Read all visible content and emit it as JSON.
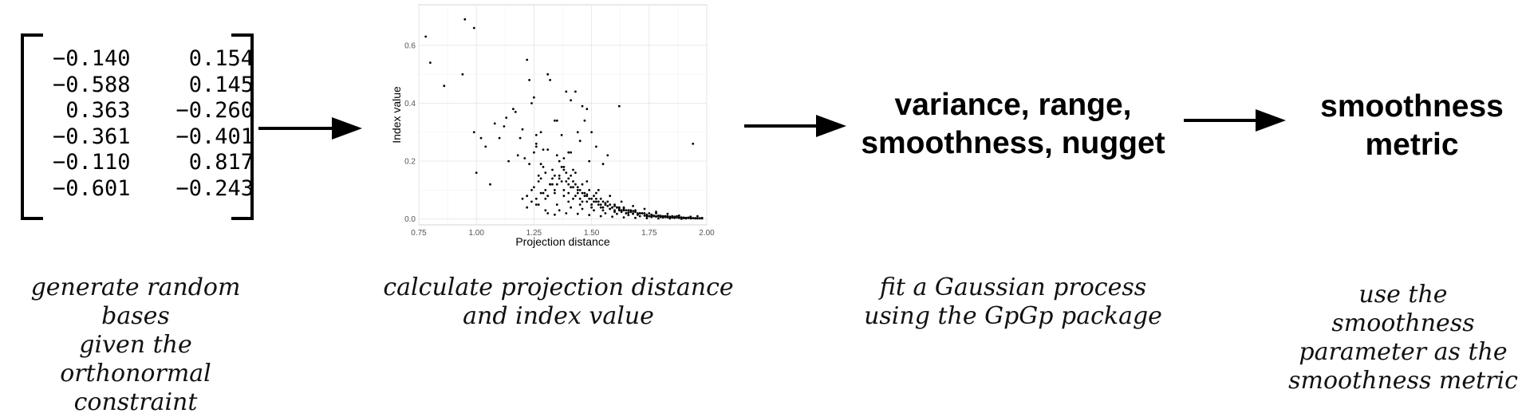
{
  "matrix": {
    "rows": [
      [
        "−0.140",
        "0.154"
      ],
      [
        "−0.588",
        "0.145"
      ],
      [
        "0.363",
        "−0.260"
      ],
      [
        "−0.361",
        "−0.401"
      ],
      [
        "−0.110",
        "0.817"
      ],
      [
        "−0.601",
        "−0.243"
      ]
    ]
  },
  "steps": {
    "params_line1": "variance, range,",
    "params_line2": "smoothness, nugget",
    "metric_line1": "smoothness",
    "metric_line2": "metric"
  },
  "captions": {
    "c1": [
      "generate random bases",
      "given the orthonormal",
      "constraint"
    ],
    "c2": [
      "calculate projection distance",
      "and index value"
    ],
    "c3": [
      "fit a Gaussian process",
      "using the GpGp package"
    ],
    "c4": [
      "use the smoothness",
      "parameter as the",
      "smoothness metric"
    ]
  },
  "chart_data": {
    "type": "scatter",
    "xlabel": "Projection distance",
    "ylabel": "Index value",
    "xlim": [
      0.75,
      2.0
    ],
    "ylim": [
      -0.02,
      0.74
    ],
    "xticks": [
      0.75,
      1.0,
      1.25,
      1.5,
      1.75,
      2.0
    ],
    "xtick_labels": [
      "0.75",
      "1.00",
      "1.25",
      "1.50",
      "1.75",
      "2.00"
    ],
    "yticks": [
      0.0,
      0.2,
      0.4,
      0.6
    ],
    "ytick_labels": [
      "0.0",
      "0.2",
      "0.4",
      "0.6"
    ],
    "grid": true,
    "points": {
      "x": [
        0.78,
        0.8,
        0.86,
        0.94,
        0.95,
        0.99,
        0.99,
        1.0,
        1.02,
        1.04,
        1.06,
        1.08,
        1.1,
        1.12,
        1.14,
        1.16,
        1.17,
        1.19,
        1.2,
        1.22,
        1.23,
        1.24,
        1.25,
        1.26,
        1.27,
        1.28,
        1.29,
        1.3,
        1.31,
        1.32,
        1.33,
        1.34,
        1.35,
        1.36,
        1.37,
        1.38,
        1.39,
        1.4,
        1.41,
        1.42,
        1.43,
        1.44,
        1.45,
        1.46,
        1.47,
        1.48,
        1.49,
        1.5,
        1.51,
        1.52,
        1.53,
        1.54,
        1.55,
        1.56,
        1.57,
        1.58,
        1.59,
        1.6,
        1.61,
        1.62,
        1.63,
        1.64,
        1.65,
        1.66,
        1.67,
        1.68,
        1.69,
        1.7,
        1.71,
        1.72,
        1.73,
        1.74,
        1.75,
        1.76,
        1.77,
        1.78,
        1.79,
        1.8,
        1.81,
        1.82,
        1.83,
        1.84,
        1.85,
        1.86,
        1.87,
        1.88,
        1.89,
        1.9,
        1.91,
        1.92,
        1.93,
        1.94,
        1.95,
        1.96,
        1.97,
        1.98,
        1.22,
        1.25,
        1.27,
        1.3,
        1.33,
        1.35,
        1.38,
        1.4,
        1.43,
        1.45,
        1.48,
        1.5,
        1.53,
        1.55,
        1.58,
        1.6,
        1.63,
        1.65,
        1.68,
        1.7,
        1.73,
        1.75,
        1.78,
        1.8,
        1.83,
        1.85,
        1.88,
        1.9,
        1.93,
        1.95,
        1.26,
        1.29,
        1.32,
        1.36,
        1.39,
        1.42,
        1.46,
        1.49,
        1.52,
        1.56,
        1.59,
        1.62,
        1.66,
        1.69,
        1.72,
        1.76,
        1.79,
        1.82,
        1.86,
        1.89,
        1.92,
        1.27,
        1.31,
        1.34,
        1.37,
        1.41,
        1.44,
        1.47,
        1.51,
        1.54,
        1.57,
        1.61,
        1.64,
        1.67,
        1.71,
        1.74,
        1.77,
        1.81,
        1.84,
        1.87,
        1.91,
        1.94,
        1.97,
        1.24,
        1.28,
        1.33,
        1.38,
        1.43,
        1.48,
        1.53,
        1.58,
        1.63,
        1.68,
        1.73,
        1.78,
        1.83,
        1.88,
        1.93,
        1.98,
        1.2,
        1.24,
        1.28,
        1.32,
        1.36,
        1.4,
        1.44,
        1.48,
        1.52,
        1.56,
        1.6,
        1.64,
        1.68,
        1.72,
        1.76,
        1.8,
        1.84,
        1.88,
        1.92,
        1.96,
        1.22,
        1.26,
        1.3,
        1.34,
        1.38,
        1.42,
        1.46,
        1.5,
        1.54,
        1.58,
        1.62,
        1.66,
        1.7,
        1.74,
        1.78,
        1.82,
        1.86,
        1.9,
        1.94,
        1.3,
        1.35,
        1.4,
        1.45,
        1.5,
        1.55,
        1.6,
        1.65,
        1.7,
        1.75,
        1.8,
        1.85,
        1.9,
        1.95,
        1.31,
        1.36,
        1.41,
        1.46,
        1.51,
        1.56,
        1.61,
        1.66,
        1.71,
        1.76,
        1.81,
        1.86,
        1.91,
        1.96,
        1.34,
        1.39,
        1.44,
        1.49,
        1.54,
        1.59,
        1.64,
        1.69,
        1.74,
        1.79,
        1.84,
        1.89,
        1.94,
        1.21,
        1.23,
        1.26,
        1.29,
        1.37,
        1.41,
        1.45,
        1.47,
        1.49,
        1.52,
        1.55,
        1.57,
        1.62,
        1.13,
        1.18,
        1.31,
        1.35,
        1.44,
        1.48,
        1.5,
        1.25,
        1.26,
        1.28,
        1.38,
        1.4,
        1.42,
        1.46,
        1.39,
        1.41,
        1.34,
        1.43
      ],
      "y": [
        0.63,
        0.54,
        0.46,
        0.5,
        0.69,
        0.66,
        0.3,
        0.16,
        0.28,
        0.25,
        0.12,
        0.33,
        0.28,
        0.32,
        0.2,
        0.38,
        0.37,
        0.28,
        0.31,
        0.55,
        0.48,
        0.4,
        0.23,
        0.29,
        0.15,
        0.3,
        0.18,
        0.1,
        0.5,
        0.48,
        0.12,
        0.15,
        0.22,
        0.2,
        0.18,
        0.17,
        0.16,
        0.14,
        0.15,
        0.13,
        0.12,
        0.11,
        0.1,
        0.12,
        0.09,
        0.08,
        0.1,
        0.07,
        0.08,
        0.09,
        0.06,
        0.07,
        0.06,
        0.05,
        0.06,
        0.05,
        0.04,
        0.05,
        0.04,
        0.04,
        0.03,
        0.04,
        0.03,
        0.03,
        0.03,
        0.02,
        0.03,
        0.02,
        0.02,
        0.02,
        0.02,
        0.01,
        0.02,
        0.01,
        0.01,
        0.02,
        0.01,
        0.01,
        0.01,
        0.01,
        0.01,
        0.005,
        0.01,
        0.005,
        0.01,
        0.005,
        0.005,
        0.005,
        0.004,
        0.005,
        0.004,
        0.003,
        0.003,
        0.002,
        0.003,
        0.002,
        0.08,
        0.11,
        0.13,
        0.16,
        0.14,
        0.12,
        0.1,
        0.09,
        0.08,
        0.07,
        0.06,
        0.05,
        0.05,
        0.04,
        0.035,
        0.03,
        0.025,
        0.02,
        0.018,
        0.015,
        0.012,
        0.01,
        0.008,
        0.007,
        0.006,
        0.005,
        0.004,
        0.003,
        0.002,
        0.002,
        0.07,
        0.09,
        0.12,
        0.15,
        0.13,
        0.11,
        0.09,
        0.07,
        0.06,
        0.05,
        0.04,
        0.035,
        0.03,
        0.025,
        0.02,
        0.015,
        0.012,
        0.01,
        0.008,
        0.006,
        0.004,
        0.05,
        0.08,
        0.1,
        0.13,
        0.11,
        0.09,
        0.08,
        0.06,
        0.05,
        0.045,
        0.04,
        0.03,
        0.025,
        0.02,
        0.015,
        0.012,
        0.009,
        0.007,
        0.005,
        0.004,
        0.003,
        0.002,
        0.1,
        0.14,
        0.17,
        0.18,
        0.16,
        0.13,
        0.1,
        0.08,
        0.06,
        0.045,
        0.035,
        0.025,
        0.018,
        0.012,
        0.008,
        0.004,
        0.07,
        0.06,
        0.09,
        0.12,
        0.14,
        0.12,
        0.1,
        0.085,
        0.07,
        0.055,
        0.045,
        0.035,
        0.028,
        0.02,
        0.015,
        0.011,
        0.008,
        0.006,
        0.004,
        0.003,
        0.04,
        0.05,
        0.07,
        0.09,
        0.08,
        0.07,
        0.06,
        0.05,
        0.04,
        0.035,
        0.03,
        0.022,
        0.017,
        0.013,
        0.01,
        0.007,
        0.005,
        0.004,
        0.003,
        0.03,
        0.05,
        0.06,
        0.05,
        0.04,
        0.03,
        0.025,
        0.02,
        0.015,
        0.01,
        0.008,
        0.006,
        0.004,
        0.003,
        0.02,
        0.03,
        0.04,
        0.035,
        0.03,
        0.02,
        0.018,
        0.014,
        0.01,
        0.007,
        0.005,
        0.004,
        0.002,
        0.01,
        0.015,
        0.02,
        0.018,
        0.014,
        0.01,
        0.008,
        0.006,
        0.004,
        0.003,
        0.002,
        0.002,
        0.001,
        0.26,
        0.21,
        0.19,
        0.25,
        0.24,
        0.29,
        0.23,
        0.27,
        0.34,
        0.2,
        0.25,
        0.19,
        0.22,
        0.39,
        0.35,
        0.22,
        0.24,
        0.34,
        0.3,
        0.38,
        0.3,
        0.42,
        0.26,
        0.19,
        0.21,
        0.23,
        0.17,
        0.39,
        0.44,
        0.41,
        0.34,
        0.44
      ]
    }
  }
}
